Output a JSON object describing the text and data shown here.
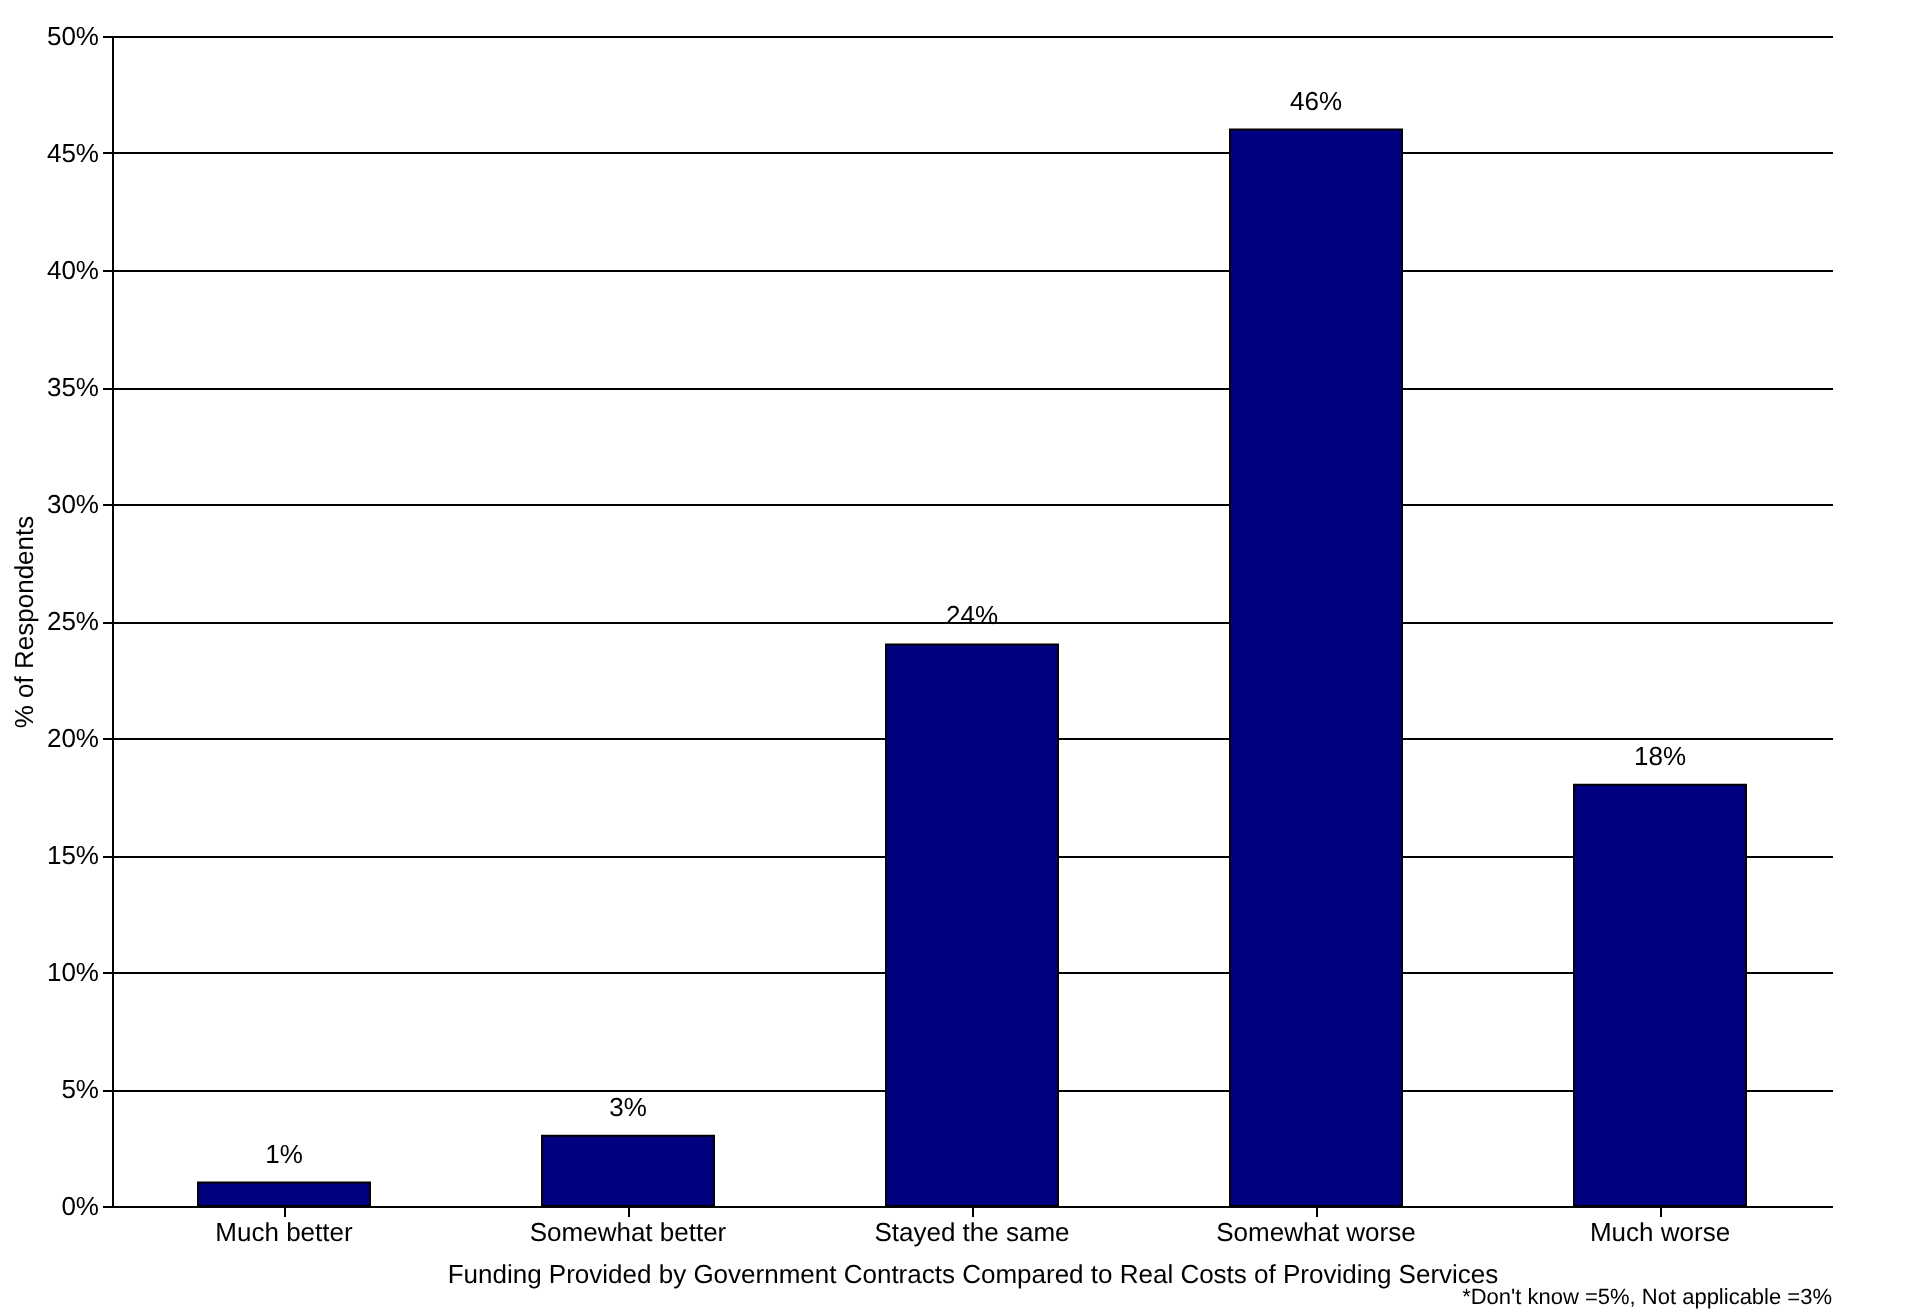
{
  "chart_data": {
    "type": "bar",
    "xlabel": "Funding Provided by Government Contracts Compared to Real Costs of Providing Services",
    "ylabel": "% of Respondents",
    "categories": [
      "Much better",
      "Somewhat better",
      "Stayed the same",
      "Somewhat worse",
      "Much worse"
    ],
    "values": [
      1,
      3,
      24,
      46,
      18
    ],
    "color": "#000080",
    "value_labels": [
      "1%",
      "3%",
      "24%",
      "46%",
      "18%"
    ],
    "ylim": [
      0,
      50
    ],
    "yticks": [
      {
        "value": 0,
        "label": "0%"
      },
      {
        "value": 5,
        "label": "5%"
      },
      {
        "value": 10,
        "label": "10%"
      },
      {
        "value": 15,
        "label": "15%"
      },
      {
        "value": 20,
        "label": "20%"
      },
      {
        "value": 25,
        "label": "25%"
      },
      {
        "value": 30,
        "label": "30%"
      },
      {
        "value": 35,
        "label": "35%"
      },
      {
        "value": 40,
        "label": "40%"
      },
      {
        "value": 45,
        "label": "45%"
      },
      {
        "value": 50,
        "label": "50%"
      }
    ],
    "grid": "y",
    "annotations": [
      "*Don't know =5%, Not applicable =3%"
    ]
  }
}
